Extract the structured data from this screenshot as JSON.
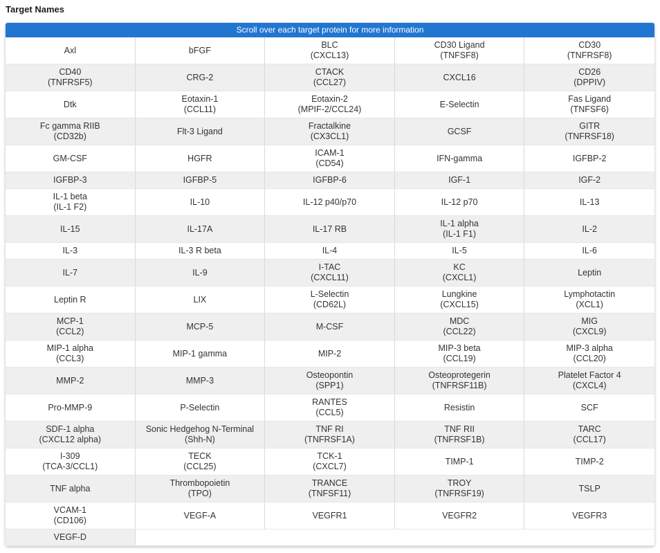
{
  "page": {
    "title": "Target Names"
  },
  "table": {
    "header": "Scroll over each target protein for more information",
    "columns": 5,
    "colors": {
      "header_bg": "#2176d2",
      "header_text": "#ffffff",
      "row_bg": "#ffffff",
      "row_alt_bg": "#efefef",
      "border_vertical": "#d9d9d9",
      "border_horizontal": "#e7e7e7",
      "text": "#333333"
    },
    "rows": [
      [
        {
          "t": "Axl",
          "s": ""
        },
        {
          "t": "bFGF",
          "s": ""
        },
        {
          "t": "BLC",
          "s": "(CXCL13)"
        },
        {
          "t": "CD30 Ligand",
          "s": "(TNFSF8)"
        },
        {
          "t": "CD30",
          "s": "(TNFRSF8)"
        }
      ],
      [
        {
          "t": "CD40",
          "s": "(TNFRSF5)"
        },
        {
          "t": "CRG-2",
          "s": ""
        },
        {
          "t": "CTACK",
          "s": "(CCL27)"
        },
        {
          "t": "CXCL16",
          "s": ""
        },
        {
          "t": "CD26",
          "s": "(DPPIV)"
        }
      ],
      [
        {
          "t": "Dtk",
          "s": ""
        },
        {
          "t": "Eotaxin-1",
          "s": "(CCL11)"
        },
        {
          "t": "Eotaxin-2",
          "s": "(MPIF-2/CCL24)"
        },
        {
          "t": "E-Selectin",
          "s": ""
        },
        {
          "t": "Fas Ligand",
          "s": "(TNFSF6)"
        }
      ],
      [
        {
          "t": "Fc gamma RIIB",
          "s": "(CD32b)"
        },
        {
          "t": "Flt-3 Ligand",
          "s": ""
        },
        {
          "t": "Fractalkine",
          "s": "(CX3CL1)"
        },
        {
          "t": "GCSF",
          "s": ""
        },
        {
          "t": "GITR",
          "s": "(TNFRSF18)"
        }
      ],
      [
        {
          "t": "GM-CSF",
          "s": ""
        },
        {
          "t": "HGFR",
          "s": ""
        },
        {
          "t": "ICAM-1",
          "s": "(CD54)"
        },
        {
          "t": "IFN-gamma",
          "s": ""
        },
        {
          "t": "IGFBP-2",
          "s": ""
        }
      ],
      [
        {
          "t": "IGFBP-3",
          "s": ""
        },
        {
          "t": "IGFBP-5",
          "s": ""
        },
        {
          "t": "IGFBP-6",
          "s": ""
        },
        {
          "t": "IGF-1",
          "s": ""
        },
        {
          "t": "IGF-2",
          "s": ""
        }
      ],
      [
        {
          "t": "IL-1 beta",
          "s": "(IL-1 F2)"
        },
        {
          "t": "IL-10",
          "s": ""
        },
        {
          "t": "IL-12 p40/p70",
          "s": ""
        },
        {
          "t": "IL-12 p70",
          "s": ""
        },
        {
          "t": "IL-13",
          "s": ""
        }
      ],
      [
        {
          "t": "IL-15",
          "s": ""
        },
        {
          "t": "IL-17A",
          "s": ""
        },
        {
          "t": "IL-17 RB",
          "s": ""
        },
        {
          "t": "IL-1 alpha",
          "s": "(IL-1 F1)"
        },
        {
          "t": "IL-2",
          "s": ""
        }
      ],
      [
        {
          "t": "IL-3",
          "s": ""
        },
        {
          "t": "IL-3 R beta",
          "s": ""
        },
        {
          "t": "IL-4",
          "s": ""
        },
        {
          "t": "IL-5",
          "s": ""
        },
        {
          "t": "IL-6",
          "s": ""
        }
      ],
      [
        {
          "t": "IL-7",
          "s": ""
        },
        {
          "t": "IL-9",
          "s": ""
        },
        {
          "t": "I-TAC",
          "s": "(CXCL11)"
        },
        {
          "t": "KC",
          "s": "(CXCL1)"
        },
        {
          "t": "Leptin",
          "s": ""
        }
      ],
      [
        {
          "t": "Leptin R",
          "s": ""
        },
        {
          "t": "LIX",
          "s": ""
        },
        {
          "t": "L-Selectin",
          "s": "(CD62L)"
        },
        {
          "t": "Lungkine",
          "s": "(CXCL15)"
        },
        {
          "t": "Lymphotactin",
          "s": "(XCL1)"
        }
      ],
      [
        {
          "t": "MCP-1",
          "s": "(CCL2)"
        },
        {
          "t": "MCP-5",
          "s": ""
        },
        {
          "t": "M-CSF",
          "s": ""
        },
        {
          "t": "MDC",
          "s": "(CCL22)"
        },
        {
          "t": "MIG",
          "s": "(CXCL9)"
        }
      ],
      [
        {
          "t": "MIP-1 alpha",
          "s": "(CCL3)"
        },
        {
          "t": "MIP-1 gamma",
          "s": ""
        },
        {
          "t": "MIP-2",
          "s": ""
        },
        {
          "t": "MIP-3 beta",
          "s": "(CCL19)"
        },
        {
          "t": "MIP-3 alpha",
          "s": "(CCL20)"
        }
      ],
      [
        {
          "t": "MMP-2",
          "s": ""
        },
        {
          "t": "MMP-3",
          "s": ""
        },
        {
          "t": "Osteopontin",
          "s": "(SPP1)"
        },
        {
          "t": "Osteoprotegerin",
          "s": "(TNFRSF11B)"
        },
        {
          "t": "Platelet Factor 4",
          "s": "(CXCL4)"
        }
      ],
      [
        {
          "t": "Pro-MMP-9",
          "s": ""
        },
        {
          "t": "P-Selectin",
          "s": ""
        },
        {
          "t": "RANTES",
          "s": "(CCL5)"
        },
        {
          "t": "Resistin",
          "s": ""
        },
        {
          "t": "SCF",
          "s": ""
        }
      ],
      [
        {
          "t": "SDF-1 alpha",
          "s": "(CXCL12 alpha)"
        },
        {
          "t": "Sonic Hedgehog N-Terminal",
          "s": "(Shh-N)"
        },
        {
          "t": "TNF RI",
          "s": "(TNFRSF1A)"
        },
        {
          "t": "TNF RII",
          "s": "(TNFRSF1B)"
        },
        {
          "t": "TARC",
          "s": "(CCL17)"
        }
      ],
      [
        {
          "t": "I-309",
          "s": "(TCA-3/CCL1)"
        },
        {
          "t": "TECK",
          "s": "(CCL25)"
        },
        {
          "t": "TCK-1",
          "s": "(CXCL7)"
        },
        {
          "t": "TIMP-1",
          "s": ""
        },
        {
          "t": "TIMP-2",
          "s": ""
        }
      ],
      [
        {
          "t": "TNF alpha",
          "s": ""
        },
        {
          "t": "Thrombopoietin",
          "s": "(TPO)"
        },
        {
          "t": "TRANCE",
          "s": "(TNFSF11)"
        },
        {
          "t": "TROY",
          "s": "(TNFRSF19)"
        },
        {
          "t": "TSLP",
          "s": ""
        }
      ],
      [
        {
          "t": "VCAM-1",
          "s": "(CD106)"
        },
        {
          "t": "VEGF-A",
          "s": ""
        },
        {
          "t": "VEGFR1",
          "s": ""
        },
        {
          "t": "VEGFR2",
          "s": ""
        },
        {
          "t": "VEGFR3",
          "s": ""
        }
      ],
      [
        {
          "t": "VEGF-D",
          "s": ""
        },
        {
          "t": "",
          "s": "",
          "empty": true,
          "span": 4
        }
      ]
    ]
  }
}
